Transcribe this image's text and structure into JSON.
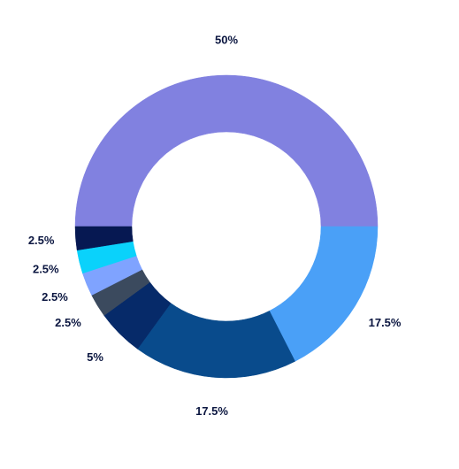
{
  "chart_data": {
    "type": "donut",
    "values": [
      50,
      17.5,
      17.5,
      5,
      2.5,
      2.5,
      2.5,
      2.5
    ],
    "value_labels": [
      "50%",
      "17.5%",
      "17.5%",
      "5%",
      "2.5%",
      "2.5%",
      "2.5%",
      "2.5%"
    ],
    "colors": [
      "#8181e0",
      "#4aa0f7",
      "#094b8c",
      "#062a69",
      "#3b4a5e",
      "#7fa3ff",
      "#0ad2fb",
      "#061852"
    ]
  }
}
